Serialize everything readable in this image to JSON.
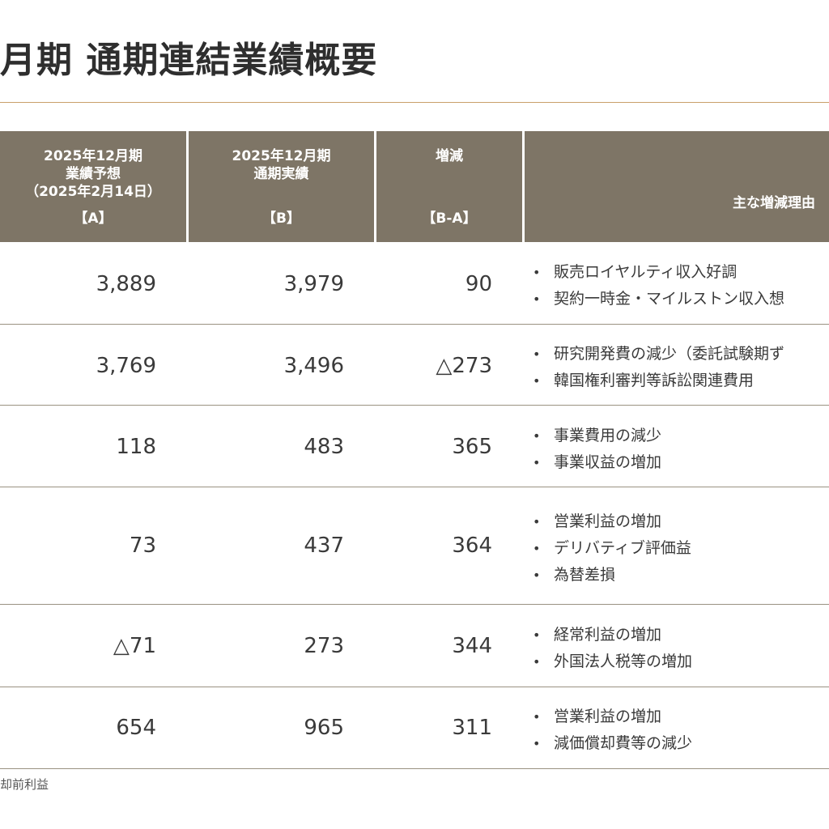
{
  "title": "月期 通期連結業績概要",
  "header": {
    "col_forecast": [
      "2025年12月期",
      "業績予想",
      "（2025年2月14日）"
    ],
    "col_forecast_key": "【A】",
    "col_actual": [
      "2025年12月期",
      "通期実績"
    ],
    "col_actual_key": "【B】",
    "col_diff": "増減",
    "col_diff_key": "【B-A】",
    "col_reason": "主な増減理由"
  },
  "rows": [
    {
      "forecast": "3,889",
      "actual": "3,979",
      "diff": "90",
      "reasons": [
        "販売ロイヤルティ収入好調",
        "契約一時金・マイルストン収入想"
      ]
    },
    {
      "forecast": "3,769",
      "actual": "3,496",
      "diff": "△273",
      "reasons": [
        "研究開発費の減少（委託試験期ず",
        "韓国権利審判等訴訟関連費用"
      ]
    },
    {
      "forecast": "118",
      "actual": "483",
      "diff": "365",
      "reasons": [
        "事業費用の減少",
        "事業収益の増加"
      ]
    },
    {
      "forecast": "73",
      "actual": "437",
      "diff": "364",
      "reasons": [
        "営業利益の増加",
        "デリバティブ評価益",
        "為替差損"
      ]
    },
    {
      "forecast": "△71",
      "actual": "273",
      "diff": "344",
      "reasons": [
        "経常利益の増加",
        "外国法人税等の増加"
      ]
    },
    {
      "forecast": "654",
      "actual": "965",
      "diff": "311",
      "reasons": [
        "営業利益の増加",
        "減価償却費等の減少"
      ]
    }
  ],
  "footnote": "却前利益"
}
